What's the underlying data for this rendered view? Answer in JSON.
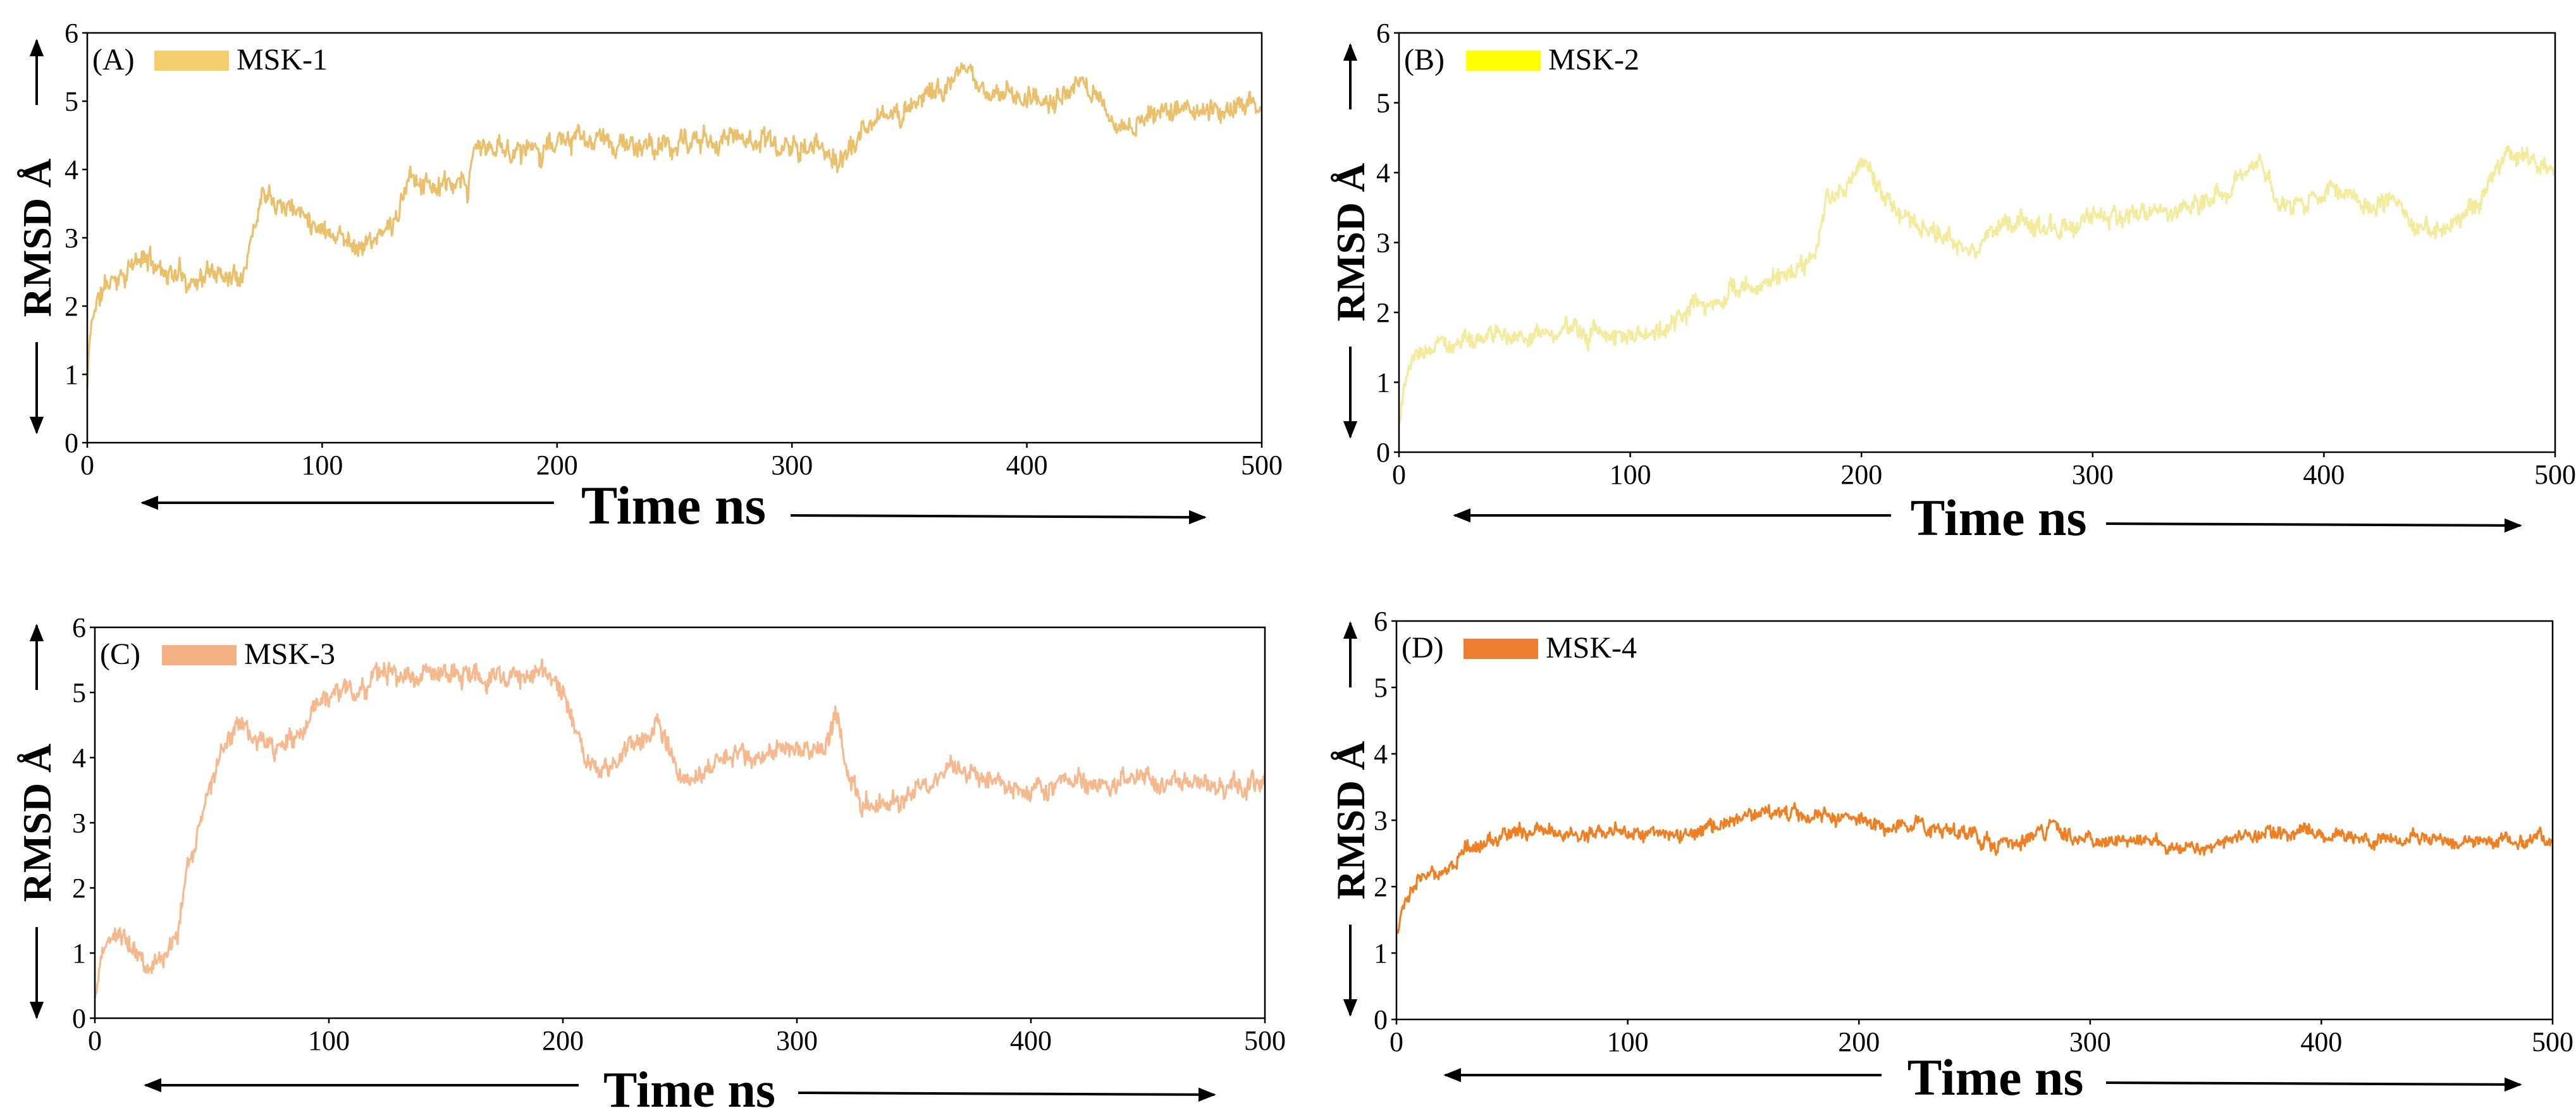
{
  "figure": {
    "arrow_color": "#000000"
  },
  "chart_data": [
    {
      "type": "line",
      "panel_label": "(A)",
      "legend": "MSK-1",
      "color": "#EAC06A",
      "legend_color": "#F4CE6C",
      "xlabel": "Time ns",
      "ylabel": "RMSD Å",
      "xlim": [
        0,
        500
      ],
      "ylim": [
        0,
        6
      ],
      "xticks": [
        "0",
        "100",
        "200",
        "300",
        "400",
        "500"
      ],
      "yticks": [
        "0",
        "1",
        "2",
        "3",
        "4",
        "5",
        "6"
      ],
      "noise": 0.17,
      "seed": 11,
      "series": [
        {
          "name": "MSK-1",
          "x": [
            0,
            1,
            3,
            8,
            15,
            25,
            35,
            45,
            55,
            65,
            70,
            75,
            85,
            95,
            105,
            115,
            125,
            132,
            138,
            145,
            155,
            162,
            165,
            175,
            190,
            200,
            220,
            240,
            260,
            280,
            300,
            315,
            320,
            325,
            335,
            345,
            355,
            365,
            372,
            380,
            390,
            400,
            410,
            420,
            430,
            435,
            445,
            455,
            465,
            475,
            485,
            495,
            500
          ],
          "y": [
            0.8,
            1.5,
            2.0,
            2.3,
            2.5,
            2.7,
            2.5,
            2.4,
            2.5,
            2.5,
            3.0,
            3.8,
            3.5,
            3.3,
            3.1,
            2.9,
            3.0,
            3.3,
            3.9,
            3.8,
            3.7,
            3.7,
            4.3,
            4.3,
            4.3,
            4.4,
            4.4,
            4.3,
            4.4,
            4.5,
            4.3,
            4.3,
            4.1,
            4.3,
            4.7,
            4.8,
            5.1,
            5.2,
            5.4,
            5.2,
            5.1,
            5.1,
            5.0,
            5.1,
            5.2,
            4.7,
            4.6,
            4.8,
            4.9,
            4.8,
            4.9,
            5.0,
            5.0
          ]
        }
      ]
    },
    {
      "type": "line",
      "panel_label": "(B)",
      "legend": "MSK-2",
      "color": "#F2EC9C",
      "legend_color": "#FFFF00",
      "xlabel": "Time ns",
      "ylabel": "RMSD Å",
      "xlim": [
        0,
        500
      ],
      "ylim": [
        0,
        6
      ],
      "xticks": [
        "0",
        "100",
        "200",
        "300",
        "400",
        "500"
      ],
      "yticks": [
        "0",
        "1",
        "2",
        "3",
        "4",
        "5",
        "6"
      ],
      "noise": 0.14,
      "seed": 23,
      "series": [
        {
          "name": "MSK-2",
          "x": [
            0,
            2,
            5,
            10,
            20,
            30,
            50,
            70,
            90,
            110,
            120,
            130,
            140,
            150,
            160,
            170,
            180,
            185,
            195,
            200,
            210,
            220,
            230,
            240,
            250,
            260,
            270,
            280,
            290,
            300,
            320,
            340,
            360,
            372,
            380,
            390,
            400,
            410,
            420,
            430,
            440,
            450,
            460,
            470,
            475,
            480,
            490,
            500
          ],
          "y": [
            0.4,
            0.9,
            1.2,
            1.4,
            1.6,
            1.6,
            1.7,
            1.7,
            1.7,
            1.7,
            1.9,
            2.1,
            2.2,
            2.3,
            2.5,
            2.6,
            2.7,
            3.6,
            3.9,
            4.2,
            3.6,
            3.4,
            3.2,
            3.0,
            3.0,
            3.2,
            3.3,
            3.2,
            3.3,
            3.4,
            3.4,
            3.5,
            3.8,
            4.2,
            3.6,
            3.5,
            3.7,
            3.8,
            3.5,
            3.6,
            3.2,
            3.2,
            3.4,
            3.7,
            4.1,
            4.3,
            4.1,
            4.0
          ]
        }
      ]
    },
    {
      "type": "line",
      "panel_label": "(C)",
      "legend": "MSK-3",
      "color": "#F6B98E",
      "legend_color": "#F4B183",
      "xlabel": "Time ns",
      "ylabel": "RMSD Å",
      "xlim": [
        0,
        500
      ],
      "ylim": [
        0,
        6
      ],
      "xticks": [
        "0",
        "100",
        "200",
        "300",
        "400",
        "500"
      ],
      "yticks": [
        "0",
        "1",
        "2",
        "3",
        "4",
        "5",
        "6"
      ],
      "noise": 0.17,
      "seed": 37,
      "series": [
        {
          "name": "MSK-3",
          "x": [
            0,
            2,
            5,
            10,
            15,
            20,
            25,
            30,
            35,
            40,
            45,
            50,
            55,
            60,
            70,
            80,
            90,
            95,
            100,
            110,
            120,
            140,
            160,
            180,
            195,
            200,
            205,
            210,
            220,
            230,
            240,
            245,
            250,
            260,
            270,
            280,
            290,
            300,
            310,
            318,
            322,
            328,
            335,
            345,
            355,
            365,
            380,
            400,
            420,
            440,
            460,
            480,
            500
          ],
          "y": [
            0.3,
            0.8,
            1.2,
            1.3,
            1.2,
            1.0,
            0.9,
            0.9,
            1.2,
            2.3,
            3.1,
            3.7,
            4.2,
            4.4,
            4.2,
            4.1,
            4.4,
            4.8,
            5.0,
            5.0,
            5.3,
            5.3,
            5.3,
            5.2,
            5.3,
            4.9,
            4.4,
            4.0,
            3.8,
            4.2,
            4.5,
            4.2,
            3.7,
            3.7,
            4.0,
            4.1,
            4.2,
            4.1,
            4.2,
            4.6,
            3.8,
            3.4,
            3.3,
            3.3,
            3.6,
            3.8,
            3.7,
            3.6,
            3.6,
            3.6,
            3.6,
            3.6,
            3.6
          ]
        }
      ]
    },
    {
      "type": "line",
      "panel_label": "(D)",
      "legend": "MSK-4",
      "color": "#F07F21",
      "legend_color": "#ED7D31",
      "xlabel": "Time ns",
      "ylabel": "RMSD Å",
      "xlim": [
        0,
        500
      ],
      "ylim": [
        0,
        6
      ],
      "xticks": [
        "0",
        "100",
        "200",
        "300",
        "400",
        "500"
      ],
      "yticks": [
        "0",
        "1",
        "2",
        "3",
        "4",
        "5",
        "6"
      ],
      "noise": 0.11,
      "seed": 53,
      "series": [
        {
          "name": "MSK-4",
          "x": [
            0,
            2,
            5,
            10,
            15,
            20,
            25,
            30,
            35,
            40,
            50,
            60,
            80,
            100,
            120,
            140,
            155,
            165,
            175,
            185,
            195,
            210,
            230,
            250,
            260,
            270,
            280,
            285,
            290,
            300,
            320,
            340,
            350,
            360,
            380,
            400,
            420,
            440,
            460,
            480,
            500
          ],
          "y": [
            1.3,
            1.6,
            1.9,
            2.1,
            2.2,
            2.3,
            2.4,
            2.6,
            2.6,
            2.7,
            2.8,
            2.8,
            2.8,
            2.8,
            2.8,
            2.9,
            3.1,
            3.1,
            3.1,
            3.1,
            3.0,
            2.9,
            2.9,
            2.8,
            2.6,
            2.7,
            2.8,
            3.0,
            2.8,
            2.7,
            2.7,
            2.6,
            2.6,
            2.7,
            2.8,
            2.8,
            2.7,
            2.7,
            2.7,
            2.7,
            2.7
          ]
        }
      ]
    }
  ]
}
